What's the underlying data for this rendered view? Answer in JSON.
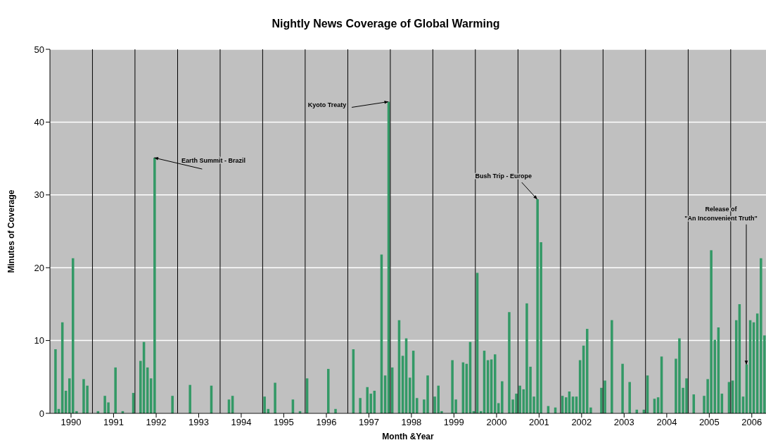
{
  "chart_data": {
    "type": "bar",
    "title": "Nightly News Coverage of Global Warming",
    "xlabel": "Month &Year",
    "ylabel": "Minutes of Coverage",
    "x": [
      "1990-01",
      "1990-02",
      "1990-03",
      "1990-04",
      "1990-05",
      "1990-06",
      "1990-07",
      "1990-08",
      "1990-09",
      "1990-10",
      "1990-11",
      "1990-12",
      "1991-01",
      "1991-02",
      "1991-03",
      "1991-04",
      "1991-05",
      "1991-06",
      "1991-07",
      "1991-08",
      "1991-09",
      "1991-10",
      "1991-11",
      "1991-12",
      "1992-01",
      "1992-02",
      "1992-03",
      "1992-04",
      "1992-05",
      "1992-06",
      "1992-07",
      "1992-08",
      "1992-09",
      "1992-10",
      "1992-11",
      "1992-12",
      "1993-01",
      "1993-02",
      "1993-03",
      "1993-04",
      "1993-05",
      "1993-06",
      "1993-07",
      "1993-08",
      "1993-09",
      "1993-10",
      "1993-11",
      "1993-12",
      "1994-01",
      "1994-02",
      "1994-03",
      "1994-04",
      "1994-05",
      "1994-06",
      "1994-07",
      "1994-08",
      "1994-09",
      "1994-10",
      "1994-11",
      "1994-12",
      "1995-01",
      "1995-02",
      "1995-03",
      "1995-04",
      "1995-05",
      "1995-06",
      "1995-07",
      "1995-08",
      "1995-09",
      "1995-10",
      "1995-11",
      "1995-12",
      "1996-01",
      "1996-02",
      "1996-03",
      "1996-04",
      "1996-05",
      "1996-06",
      "1996-07",
      "1996-08",
      "1996-09",
      "1996-10",
      "1996-11",
      "1996-12",
      "1997-01",
      "1997-02",
      "1997-03",
      "1997-04",
      "1997-05",
      "1997-06",
      "1997-07",
      "1997-08",
      "1997-09",
      "1997-10",
      "1997-11",
      "1997-12",
      "1998-01",
      "1998-02",
      "1998-03",
      "1998-04",
      "1998-05",
      "1998-06",
      "1998-07",
      "1998-08",
      "1998-09",
      "1998-10",
      "1998-11",
      "1998-12",
      "1999-01",
      "1999-02",
      "1999-03",
      "1999-04",
      "1999-05",
      "1999-06",
      "1999-07",
      "1999-08",
      "1999-09",
      "1999-10",
      "1999-11",
      "1999-12",
      "2000-01",
      "2000-02",
      "2000-03",
      "2000-04",
      "2000-05",
      "2000-06",
      "2000-07",
      "2000-08",
      "2000-09",
      "2000-10",
      "2000-11",
      "2000-12",
      "2001-01",
      "2001-02",
      "2001-03",
      "2001-04",
      "2001-05",
      "2001-06",
      "2001-07",
      "2001-08",
      "2001-09",
      "2001-10",
      "2001-11",
      "2001-12",
      "2002-01",
      "2002-02",
      "2002-03",
      "2002-04",
      "2002-05",
      "2002-06",
      "2002-07",
      "2002-08",
      "2002-09",
      "2002-10",
      "2002-11",
      "2002-12",
      "2003-01",
      "2003-02",
      "2003-03",
      "2003-04",
      "2003-05",
      "2003-06",
      "2003-07",
      "2003-08",
      "2003-09",
      "2003-10",
      "2003-11",
      "2003-12",
      "2004-01",
      "2004-02",
      "2004-03",
      "2004-04",
      "2004-05",
      "2004-06",
      "2004-07",
      "2004-08",
      "2004-09",
      "2004-10",
      "2004-11",
      "2004-12",
      "2005-01",
      "2005-02",
      "2005-03",
      "2005-04",
      "2005-05",
      "2005-06",
      "2005-07",
      "2005-08",
      "2005-09",
      "2005-10",
      "2005-11",
      "2005-12",
      "2006-01",
      "2006-02",
      "2006-03",
      "2006-04",
      "2006-05",
      "2006-06",
      "2006-07",
      "2006-08",
      "2006-09",
      "2006-10"
    ],
    "values": [
      0,
      8.8,
      0.6,
      12.5,
      3.1,
      4.8,
      21.3,
      0.3,
      0,
      4.7,
      3.8,
      0,
      0,
      0.3,
      0,
      2.4,
      1.5,
      0,
      6.3,
      0,
      0.3,
      0,
      0,
      2.8,
      0,
      7.2,
      9.8,
      6.3,
      4.8,
      35.1,
      0,
      0,
      0,
      0,
      2.4,
      0,
      0,
      0,
      0,
      3.9,
      0,
      0,
      0,
      0,
      0,
      3.8,
      0,
      0,
      0,
      0,
      1.9,
      2.4,
      0,
      0,
      0,
      0,
      0,
      0,
      0,
      0,
      2.3,
      0.6,
      0,
      4.2,
      0,
      0,
      0,
      0,
      1.9,
      0,
      0.3,
      0,
      4.8,
      0,
      0,
      0,
      0,
      0,
      6.1,
      0,
      0.6,
      0,
      0,
      0,
      0,
      8.8,
      0,
      2.1,
      0,
      3.6,
      2.7,
      3.1,
      0,
      21.8,
      5.2,
      42.8,
      6.3,
      0,
      12.8,
      7.9,
      10.3,
      4.9,
      8.6,
      2.1,
      0,
      1.9,
      5.2,
      0,
      2.3,
      3.8,
      0.3,
      0,
      0,
      7.3,
      1.9,
      0,
      7.0,
      6.8,
      9.8,
      0.3,
      19.3,
      0.3,
      8.6,
      7.3,
      7.4,
      8.1,
      1.4,
      4.4,
      0,
      13.9,
      1.9,
      2.7,
      3.8,
      3.3,
      15.1,
      6.4,
      2.3,
      29.4,
      23.5,
      0,
      1.0,
      0,
      0.8,
      0,
      2.4,
      2.2,
      3.0,
      2.3,
      2.3,
      7.3,
      9.3,
      11.6,
      0.8,
      0,
      0,
      3.5,
      4.5,
      0,
      12.8,
      0,
      0,
      6.8,
      0,
      4.3,
      0,
      0.5,
      0,
      0.5,
      5.2,
      0,
      2.0,
      2.2,
      7.8,
      0,
      0,
      0,
      7.5,
      10.3,
      3.5,
      4.8,
      0,
      2.6,
      0,
      0,
      2.4,
      4.7,
      22.4,
      10.1,
      11.8,
      2.7,
      0,
      4.3,
      4.5,
      12.8,
      15.0,
      2.3,
      6.7,
      12.8,
      12.5,
      13.7,
      21.3,
      10.7
    ],
    "color": "#339966",
    "xlim": [
      "1990-01-01",
      "2006-10-31"
    ],
    "xticks": [
      {
        "value": "1990-07-01",
        "label": "1990"
      },
      {
        "value": "1991-07-01",
        "label": "1991"
      },
      {
        "value": "1992-07-01",
        "label": "1992"
      },
      {
        "value": "1993-07-01",
        "label": "1993"
      },
      {
        "value": "1994-07-01",
        "label": "1994"
      },
      {
        "value": "1995-07-01",
        "label": "1995"
      },
      {
        "value": "1996-07-01",
        "label": "1996"
      },
      {
        "value": "1997-07-01",
        "label": "1997"
      },
      {
        "value": "1998-07-01",
        "label": "1998"
      },
      {
        "value": "1999-07-01",
        "label": "1999"
      },
      {
        "value": "2000-07-01",
        "label": "2000"
      },
      {
        "value": "2001-07-01",
        "label": "2001"
      },
      {
        "value": "2002-07-01",
        "label": "2002"
      },
      {
        "value": "2003-07-01",
        "label": "2003"
      },
      {
        "value": "2004-07-01",
        "label": "2004"
      },
      {
        "value": "2005-07-01",
        "label": "2005"
      },
      {
        "value": "2006-07-01",
        "label": "2006"
      }
    ],
    "ylim": [
      0,
      50
    ],
    "yticks": [
      0,
      10,
      20,
      30,
      40,
      50
    ],
    "grid": "y",
    "ref_lines": [
      {
        "axis": "x",
        "value": "1991-01-01",
        "color": "#000000"
      },
      {
        "axis": "x",
        "value": "1992-01-01",
        "color": "#000000"
      },
      {
        "axis": "x",
        "value": "1993-01-01",
        "color": "#000000"
      },
      {
        "axis": "x",
        "value": "1994-01-01",
        "color": "#000000"
      },
      {
        "axis": "x",
        "value": "1995-01-01",
        "color": "#000000"
      },
      {
        "axis": "x",
        "value": "1996-01-01",
        "color": "#000000"
      },
      {
        "axis": "x",
        "value": "1997-01-01",
        "color": "#000000"
      },
      {
        "axis": "x",
        "value": "1998-01-01",
        "color": "#000000"
      },
      {
        "axis": "x",
        "value": "1999-01-01",
        "color": "#000000"
      },
      {
        "axis": "x",
        "value": "2000-01-01",
        "color": "#000000"
      },
      {
        "axis": "x",
        "value": "2001-01-01",
        "color": "#000000"
      },
      {
        "axis": "x",
        "value": "2002-01-01",
        "color": "#000000"
      },
      {
        "axis": "x",
        "value": "2003-01-01",
        "color": "#000000"
      },
      {
        "axis": "x",
        "value": "2004-01-01",
        "color": "#000000"
      },
      {
        "axis": "x",
        "value": "2005-01-01",
        "color": "#000000"
      },
      {
        "axis": "x",
        "value": "2006-01-01",
        "color": "#000000"
      }
    ],
    "annotations": [
      {
        "text": "Earth Summit - Brazil",
        "x": "1992-06",
        "y": 35.1
      },
      {
        "text": "Kyoto Treaty",
        "x": "1997-12",
        "y": 42.8
      },
      {
        "text": "Bush Trip - Europe",
        "x": "2001-06",
        "y": 29.4
      },
      {
        "text": "Release of\n\"An Inconvenient Truth\"",
        "x": "2006-05",
        "y": 6.7
      }
    ]
  }
}
